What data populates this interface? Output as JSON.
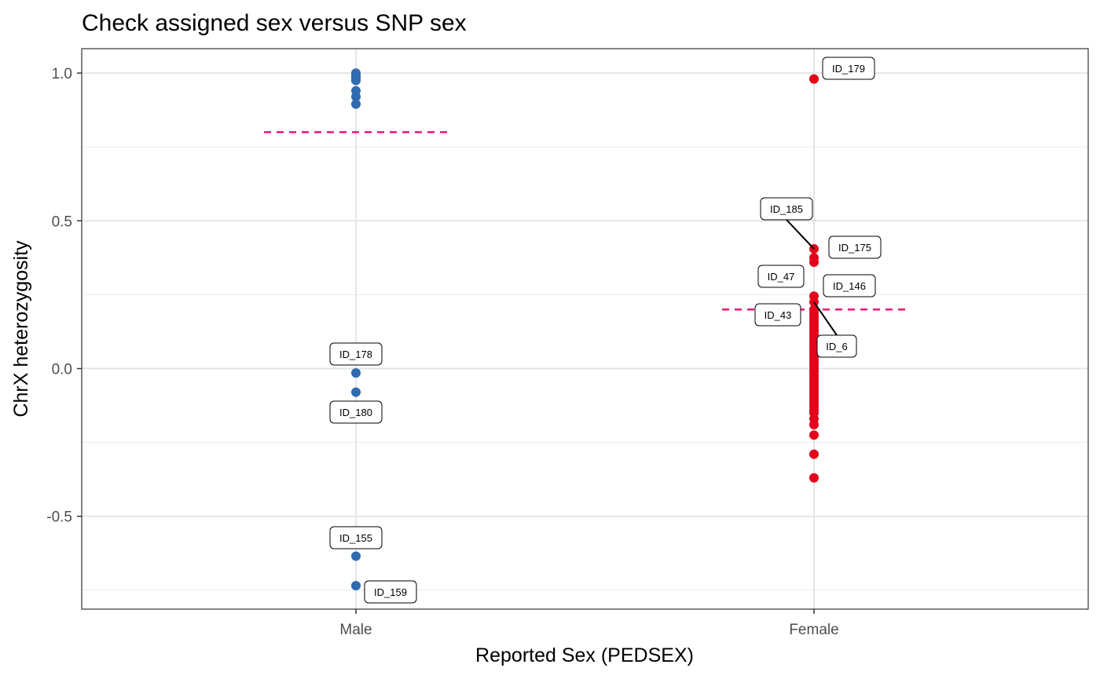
{
  "chart_data": {
    "type": "scatter",
    "title": "Check assigned sex versus SNP sex",
    "xlabel": "Reported Sex (PEDSEX)",
    "ylabel": "ChrX heterozygosity",
    "categories": [
      "Male",
      "Female"
    ],
    "ylim": [
      -0.81,
      1.08
    ],
    "yticks": [
      -0.5,
      0.0,
      0.5,
      1.0
    ],
    "ytick_labels": [
      "-0.5",
      "0.0",
      "0.5",
      "1.0"
    ],
    "grid": true,
    "colors": {
      "Male": "#2e6bb0",
      "Female": "#e3051b",
      "threshold": "#e6177a"
    },
    "thresholds": [
      {
        "category": "Male",
        "y": 0.8
      },
      {
        "category": "Female",
        "y": 0.2
      }
    ],
    "series": [
      {
        "category": "Male",
        "y": [
          1.0,
          0.995,
          0.99,
          0.985,
          0.98,
          0.975,
          0.94,
          0.92,
          0.895,
          -0.015,
          -0.08,
          -0.635,
          -0.735
        ]
      },
      {
        "category": "Female",
        "y": [
          0.98,
          0.405,
          0.375,
          0.36,
          0.245,
          0.225,
          0.2,
          0.19,
          0.18,
          0.17,
          0.16,
          0.15,
          0.14,
          0.13,
          0.12,
          0.11,
          0.1,
          0.09,
          0.08,
          0.07,
          0.06,
          0.05,
          0.04,
          0.03,
          0.02,
          0.01,
          0.0,
          -0.01,
          -0.02,
          -0.03,
          -0.04,
          -0.05,
          -0.06,
          -0.07,
          -0.08,
          -0.09,
          -0.1,
          -0.11,
          -0.12,
          -0.13,
          -0.14,
          -0.15,
          -0.17,
          -0.19,
          -0.225,
          -0.29,
          -0.37
        ]
      }
    ],
    "annotations": [
      {
        "text": "ID_179",
        "category": "Female",
        "y": 0.98
      },
      {
        "text": "ID_185",
        "category": "Female",
        "y": 0.405
      },
      {
        "text": "ID_175",
        "category": "Female",
        "y": 0.4
      },
      {
        "text": "ID_47",
        "category": "Female",
        "y": 0.245
      },
      {
        "text": "ID_146",
        "category": "Female",
        "y": 0.24
      },
      {
        "text": "ID_43",
        "category": "Female",
        "y": 0.2
      },
      {
        "text": "ID_6",
        "category": "Female",
        "y": 0.225
      },
      {
        "text": "ID_178",
        "category": "Male",
        "y": -0.015
      },
      {
        "text": "ID_180",
        "category": "Male",
        "y": -0.08
      },
      {
        "text": "ID_155",
        "category": "Male",
        "y": -0.635
      },
      {
        "text": "ID_159",
        "category": "Male",
        "y": -0.735
      }
    ]
  }
}
